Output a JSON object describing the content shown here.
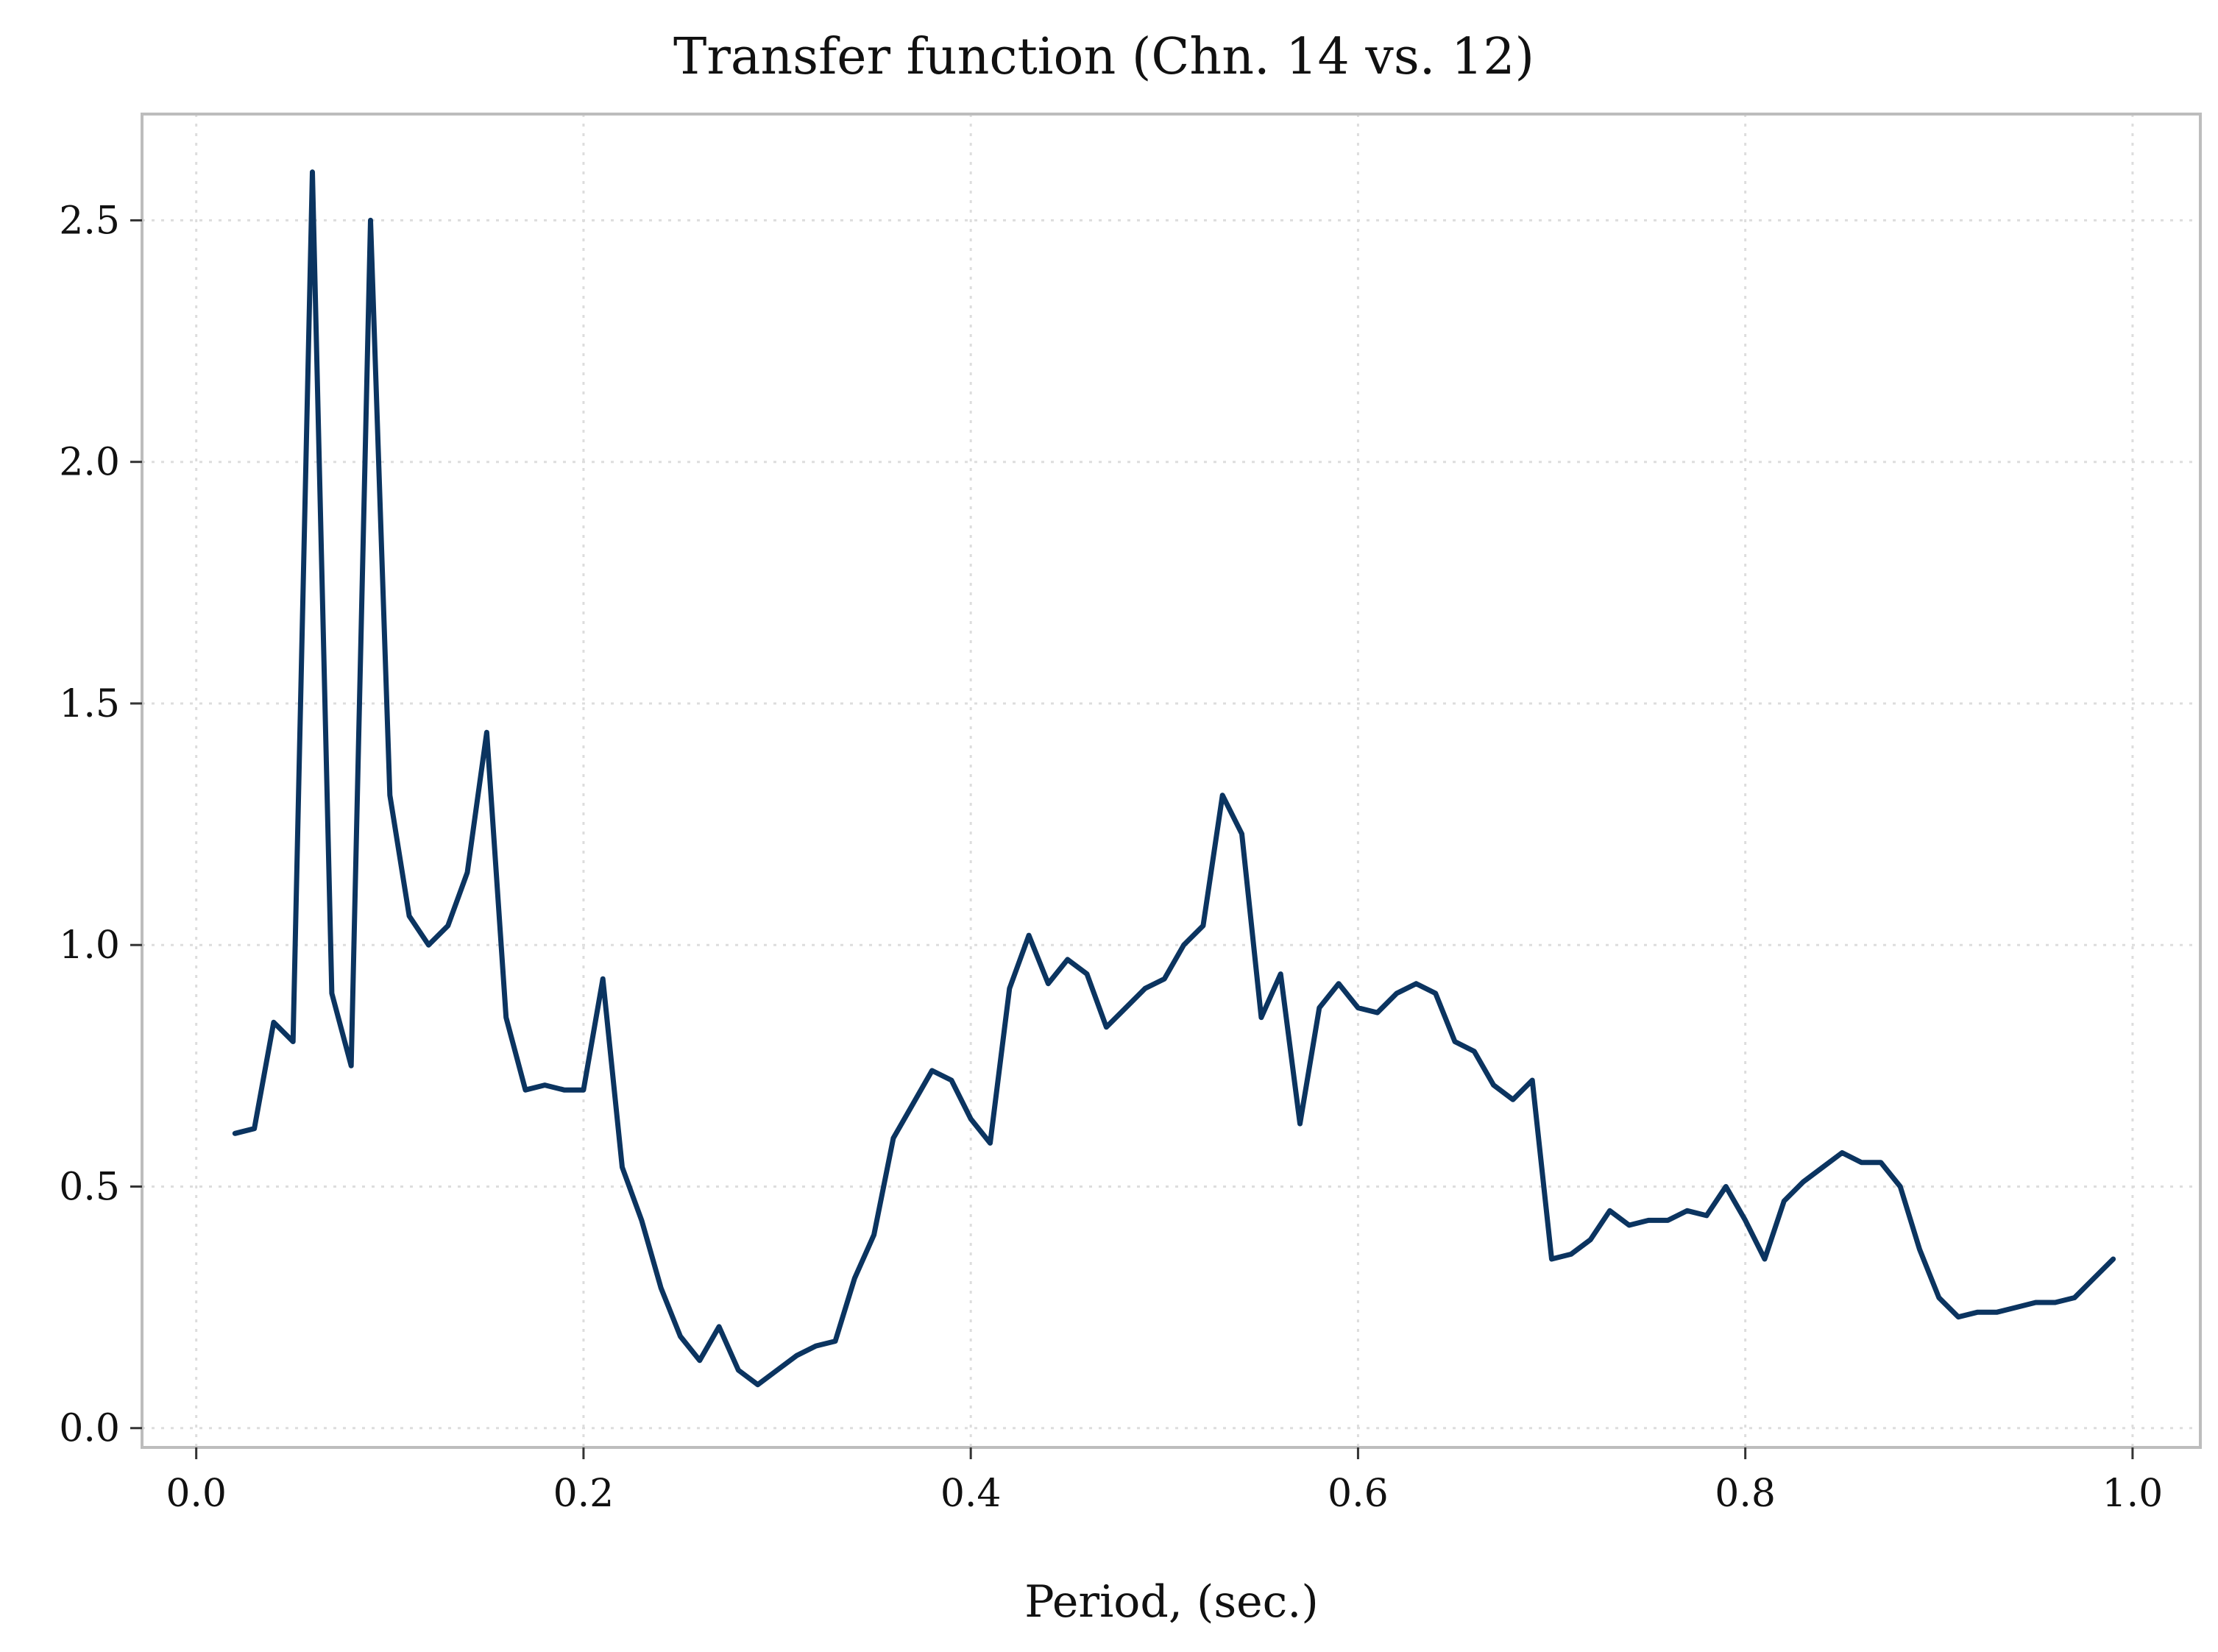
{
  "chart_data": {
    "type": "line",
    "title": "Transfer function (Chn. 14 vs. 12)",
    "xlabel": "Period, (sec.)",
    "ylabel": "",
    "xlim": [
      -0.028,
      1.035
    ],
    "ylim": [
      -0.04,
      2.72
    ],
    "xticks": [
      0.0,
      0.2,
      0.4,
      0.6,
      0.8,
      1.0
    ],
    "xtick_labels": [
      "0.0",
      "0.2",
      "0.4",
      "0.6",
      "0.8",
      "1.0"
    ],
    "yticks": [
      0.0,
      0.5,
      1.0,
      1.5,
      2.0,
      2.5
    ],
    "ytick_labels": [
      "0.0",
      "0.5",
      "1.0",
      "1.5",
      "2.0",
      "2.5"
    ],
    "grid": true,
    "legend": "none",
    "color": "#0b3460",
    "series": [
      {
        "x": [
          0.02,
          0.03,
          0.04,
          0.05,
          0.06,
          0.07,
          0.08,
          0.09,
          0.1,
          0.11,
          0.12,
          0.13,
          0.14,
          0.15,
          0.16,
          0.17,
          0.18,
          0.19,
          0.2,
          0.21,
          0.22,
          0.23,
          0.24,
          0.25,
          0.26,
          0.27,
          0.28,
          0.29,
          0.3,
          0.31,
          0.32,
          0.33,
          0.34,
          0.35,
          0.36,
          0.37,
          0.38,
          0.39,
          0.4,
          0.41,
          0.42,
          0.43,
          0.44,
          0.45,
          0.46,
          0.47,
          0.48,
          0.49,
          0.5,
          0.51,
          0.52,
          0.53,
          0.54,
          0.55,
          0.56,
          0.57,
          0.58,
          0.59,
          0.6,
          0.61,
          0.62,
          0.63,
          0.64,
          0.65,
          0.66,
          0.67,
          0.68,
          0.69,
          0.7,
          0.71,
          0.72,
          0.73,
          0.74,
          0.75,
          0.76,
          0.77,
          0.78,
          0.79,
          0.8,
          0.81,
          0.82,
          0.83,
          0.84,
          0.85,
          0.86,
          0.87,
          0.88,
          0.89,
          0.9,
          0.91,
          0.92,
          0.93,
          0.94,
          0.95,
          0.96,
          0.97,
          0.98,
          0.99
        ],
        "y": [
          0.61,
          0.62,
          0.84,
          0.8,
          2.6,
          0.9,
          0.75,
          2.5,
          1.31,
          1.06,
          1.0,
          1.04,
          1.15,
          1.44,
          0.85,
          0.7,
          0.71,
          0.7,
          0.7,
          0.93,
          0.54,
          0.43,
          0.29,
          0.19,
          0.14,
          0.21,
          0.12,
          0.09,
          0.12,
          0.15,
          0.17,
          0.18,
          0.31,
          0.4,
          0.6,
          0.67,
          0.74,
          0.72,
          0.64,
          0.59,
          0.91,
          1.02,
          0.92,
          0.97,
          0.94,
          0.83,
          0.87,
          0.91,
          0.93,
          1.0,
          1.04,
          1.31,
          1.23,
          0.85,
          0.94,
          0.63,
          0.87,
          0.92,
          0.87,
          0.86,
          0.9,
          0.92,
          0.9,
          0.8,
          0.78,
          0.71,
          0.68,
          0.72,
          0.35,
          0.36,
          0.39,
          0.45,
          0.42,
          0.43,
          0.43,
          0.45,
          0.44,
          0.5,
          0.43,
          0.35,
          0.47,
          0.51,
          0.54,
          0.57,
          0.55,
          0.55,
          0.5,
          0.37,
          0.27,
          0.23,
          0.24,
          0.24,
          0.25,
          0.26,
          0.26,
          0.27,
          0.31,
          0.35
        ]
      }
    ]
  }
}
